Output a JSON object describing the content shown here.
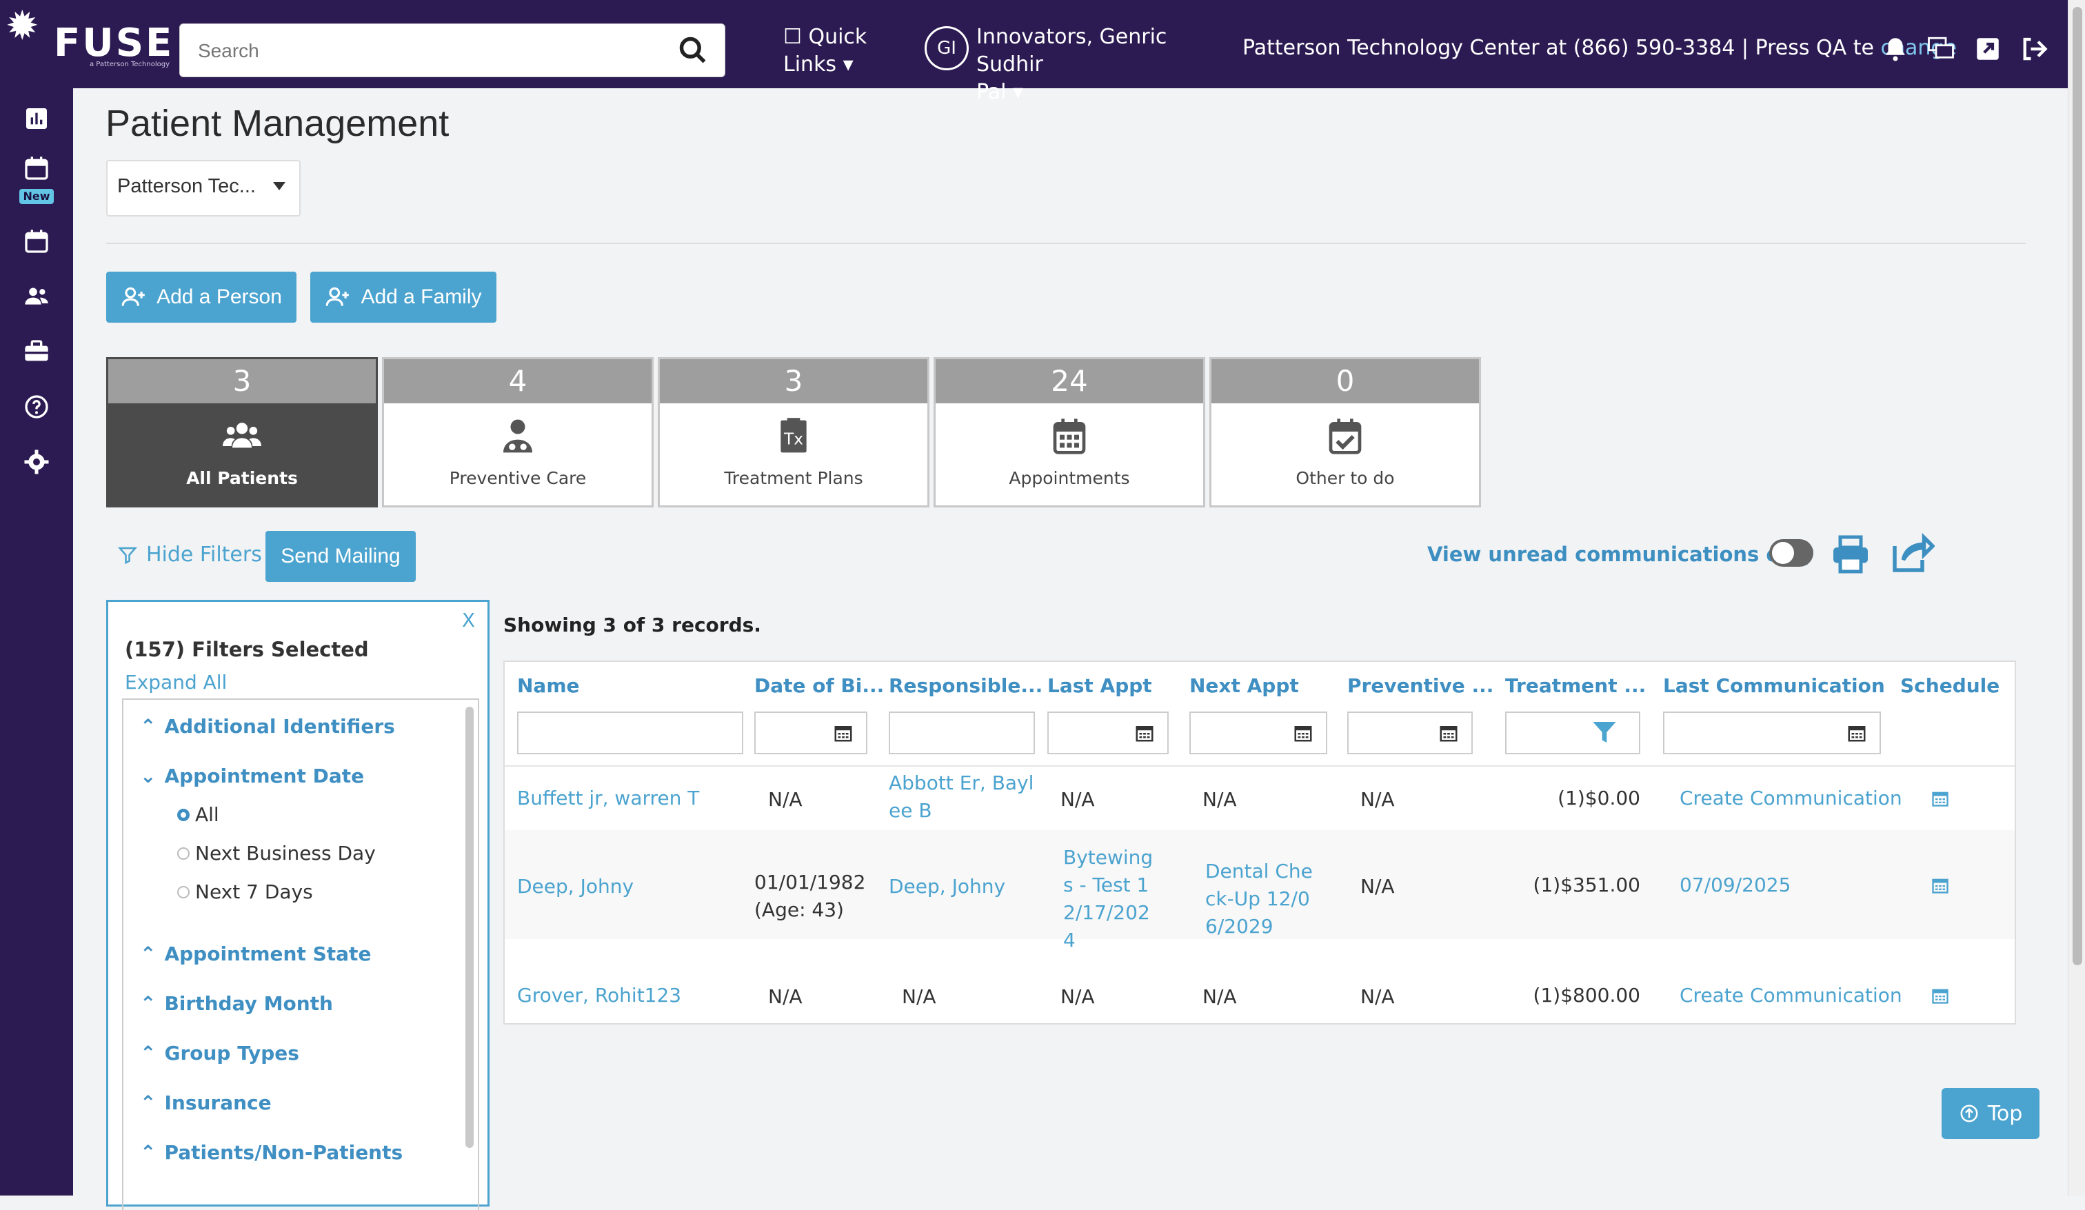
{
  "header": {
    "logo": {
      "word": "FUSE",
      "tagline": "a Patterson Technology"
    },
    "search": {
      "placeholder": "Search"
    },
    "quick_links": {
      "line1": "Quick",
      "line2": "Links"
    },
    "user": {
      "initials": "GI",
      "line1": "Innovators, Genric Sudhir",
      "line2": "Pal"
    },
    "support": {
      "text": "Patterson Technology Center at (866) 590-3384 | Press QA te",
      "link": "change"
    },
    "icons": [
      "bell-icon",
      "chat-icon",
      "external-link-icon",
      "logout-icon"
    ]
  },
  "sidebar": {
    "items": [
      {
        "icon": "dashboard-icon"
      },
      {
        "icon": "calendar-new-icon",
        "badge": "New"
      },
      {
        "icon": "calendar-icon"
      },
      {
        "icon": "people-icon"
      },
      {
        "icon": "briefcase-icon"
      },
      {
        "icon": "help-icon"
      },
      {
        "icon": "settings-icon"
      }
    ]
  },
  "page": {
    "title": "Patient Management",
    "location_select": "Patterson Tec...",
    "buttons": {
      "add_person": "Add a Person",
      "add_family": "Add a Family"
    }
  },
  "tiles": [
    {
      "count": "3",
      "label": "All Patients",
      "icon": "people-group-icon",
      "active": true
    },
    {
      "count": "4",
      "label": "Preventive Care",
      "icon": "doctor-icon"
    },
    {
      "count": "3",
      "label": "Treatment Plans",
      "icon": "prescription-icon"
    },
    {
      "count": "24",
      "label": "Appointments",
      "icon": "calendar-grid-icon"
    },
    {
      "count": "0",
      "label": "Other to do",
      "icon": "calendar-check-icon"
    }
  ],
  "controls": {
    "hide_filters": "Hide Filters",
    "send_mailing": "Send Mailing",
    "unread_only": "View unread communications only"
  },
  "filters": {
    "close": "X",
    "count_label": "(157) Filters Selected",
    "expand_all": "Expand All",
    "sections": [
      "Additional Identifiers",
      "Appointment Date",
      "Appointment State",
      "Birthday Month",
      "Group Types",
      "Insurance",
      "Patients/Non-Patients"
    ],
    "appointment_date_options": [
      "All",
      "Next Business Day",
      "Next 7 Days"
    ],
    "appointment_date_selected": "All"
  },
  "table": {
    "showing": "Showing 3 of 3 records.",
    "columns": [
      "Name",
      "Date of Bi...",
      "Responsible...",
      "Last Appt",
      "Next Appt",
      "Preventive ...",
      "Treatment ...",
      "Last Communication",
      "Schedule"
    ],
    "rows": [
      {
        "name": "Buffett jr, warren T",
        "dob": "N/A",
        "responsible_1": "Abbott Er, Bayl",
        "responsible_2": "ee B",
        "last_appt": "N/A",
        "next_appt": "N/A",
        "preventive": "N/A",
        "treatment": "(1)$0.00",
        "last_comm": "Create Communication"
      },
      {
        "name": "Deep, Johny",
        "dob_1": "01/01/1982",
        "dob_2": "(Age: 43)",
        "responsible": "Deep, Johny",
        "last_appt_lines": [
          "Bytewing",
          "s - Test 1",
          "2/17/202",
          "4"
        ],
        "next_appt_lines": [
          "Dental Che",
          "ck-Up 12/0",
          "6/2029"
        ],
        "preventive": "N/A",
        "treatment": "(1)$351.00",
        "last_comm": "07/09/2025"
      },
      {
        "name": "Grover, Rohit123",
        "dob": "N/A",
        "responsible": "N/A",
        "last_appt": "N/A",
        "next_appt": "N/A",
        "preventive": "N/A",
        "treatment": "(1)$800.00",
        "last_comm": "Create Communication"
      }
    ]
  },
  "top_button": "Top",
  "colors": {
    "nav_bg": "#2c1b52",
    "accent": "#4ba3cf",
    "link": "#3f8fc3",
    "tile_header": "#9e9e9e",
    "tile_active": "#4b4b4b"
  }
}
